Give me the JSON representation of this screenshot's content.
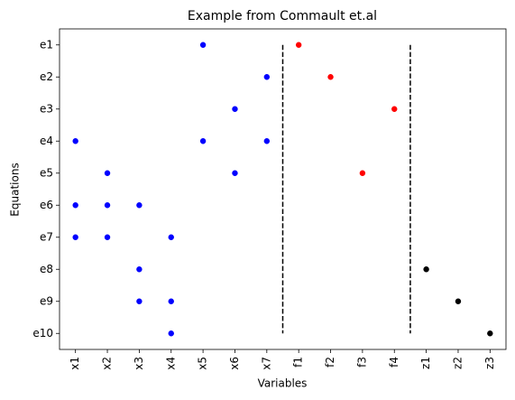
{
  "chart_data": {
    "type": "scatter",
    "title": "Example from Commault et.al",
    "x_label": "Variables",
    "y_label": "Equations",
    "x_categories": [
      "x1",
      "x2",
      "x3",
      "x4",
      "x5",
      "x6",
      "x7",
      "f1",
      "f2",
      "f3",
      "f4",
      "z1",
      "z2",
      "z3"
    ],
    "y_categories": [
      "e1",
      "e2",
      "e3",
      "e4",
      "e5",
      "e6",
      "e7",
      "e8",
      "e9",
      "e10"
    ],
    "xlim": [
      -0.5,
      13.5
    ],
    "ylim": [
      9.5,
      -0.5
    ],
    "points": [
      {
        "x": "x5",
        "y": "e1",
        "color": "#0000ff"
      },
      {
        "x": "f1",
        "y": "e1",
        "color": "#ff0000"
      },
      {
        "x": "x7",
        "y": "e2",
        "color": "#0000ff"
      },
      {
        "x": "f2",
        "y": "e2",
        "color": "#ff0000"
      },
      {
        "x": "x6",
        "y": "e3",
        "color": "#0000ff"
      },
      {
        "x": "f4",
        "y": "e3",
        "color": "#ff0000"
      },
      {
        "x": "x1",
        "y": "e4",
        "color": "#0000ff"
      },
      {
        "x": "x5",
        "y": "e4",
        "color": "#0000ff"
      },
      {
        "x": "x7",
        "y": "e4",
        "color": "#0000ff"
      },
      {
        "x": "x2",
        "y": "e5",
        "color": "#0000ff"
      },
      {
        "x": "x6",
        "y": "e5",
        "color": "#0000ff"
      },
      {
        "x": "f3",
        "y": "e5",
        "color": "#ff0000"
      },
      {
        "x": "x1",
        "y": "e6",
        "color": "#0000ff"
      },
      {
        "x": "x2",
        "y": "e6",
        "color": "#0000ff"
      },
      {
        "x": "x3",
        "y": "e6",
        "color": "#0000ff"
      },
      {
        "x": "x1",
        "y": "e7",
        "color": "#0000ff"
      },
      {
        "x": "x2",
        "y": "e7",
        "color": "#0000ff"
      },
      {
        "x": "x4",
        "y": "e7",
        "color": "#0000ff"
      },
      {
        "x": "x3",
        "y": "e8",
        "color": "#0000ff"
      },
      {
        "x": "z1",
        "y": "e8",
        "color": "#000000"
      },
      {
        "x": "x3",
        "y": "e9",
        "color": "#0000ff"
      },
      {
        "x": "x4",
        "y": "e9",
        "color": "#0000ff"
      },
      {
        "x": "z2",
        "y": "e9",
        "color": "#000000"
      },
      {
        "x": "x4",
        "y": "e10",
        "color": "#0000ff"
      },
      {
        "x": "z3",
        "y": "e10",
        "color": "#000000"
      }
    ],
    "vlines": [
      {
        "x": 6.5,
        "ymin": 0,
        "ymax": 9,
        "color": "#000000",
        "style": "dashed"
      },
      {
        "x": 10.5,
        "ymin": 0,
        "ymax": 9,
        "color": "#000000",
        "style": "dashed"
      }
    ]
  }
}
